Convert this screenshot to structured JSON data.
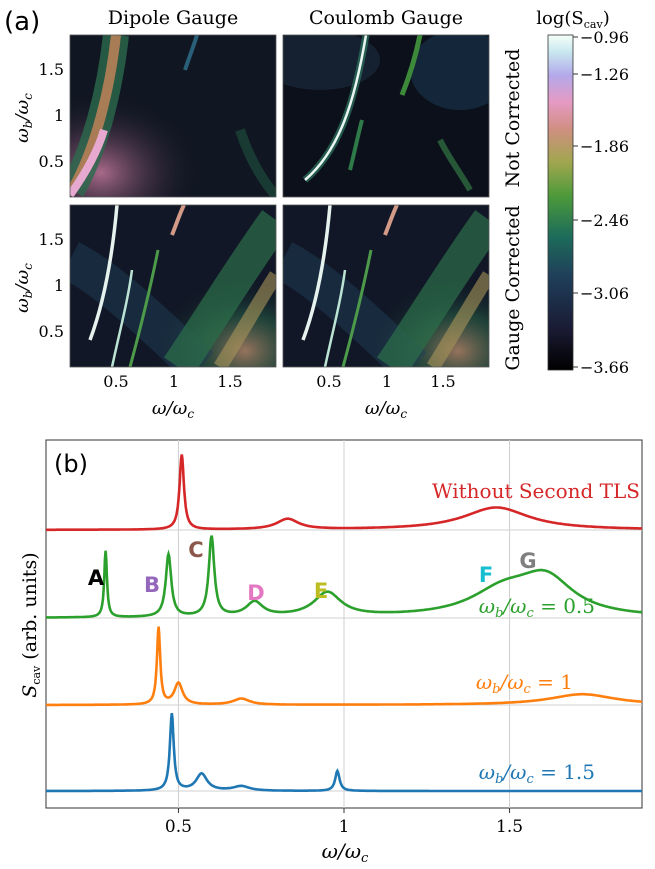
{
  "panel_a": {
    "label": "(a)",
    "column_titles": [
      "Dipole Gauge",
      "Coulomb Gauge"
    ],
    "row_titles": [
      "Not Corrected",
      "Gauge Corrected"
    ],
    "colorbar": {
      "title": "log(S",
      "title_sub": "cav",
      "title_close": ")",
      "ticks": [
        "−0.96",
        "−1.26",
        "−1.86",
        "−2.46",
        "−3.06",
        "−3.66"
      ]
    },
    "x_ticks": [
      "0.5",
      "1",
      "1.5"
    ],
    "y_ticks": [
      "0.5",
      "1",
      "1.5"
    ],
    "ylabel_main": "ω",
    "ylabel_sub": "b",
    "ylabel_slash": "/ω",
    "ylabel_sub2": "c",
    "xlabel_main": "ω/ω",
    "xlabel_sub": "c"
  },
  "panel_b": {
    "label": "(b)",
    "ylabel_main": "S",
    "ylabel_sub": "cav",
    "ylabel_tail": " (arb. units)",
    "xlabel_main": "ω/ω",
    "xlabel_sub": "c",
    "series_labels": [
      {
        "text": "Without Second TLS",
        "color": "#d62728"
      },
      {
        "text": "ω",
        "sub": "b",
        "mid": "/ω",
        "sub2": "c",
        "tail": " = 0.5",
        "color": "#2ca02c"
      },
      {
        "text": "ω",
        "sub": "b",
        "mid": "/ω",
        "sub2": "c",
        "tail": " = 1",
        "color": "#ff7f0e"
      },
      {
        "text": "ω",
        "sub": "b",
        "mid": "/ω",
        "sub2": "c",
        "tail": " = 1.5",
        "color": "#1f77b4"
      }
    ],
    "peak_letters": [
      {
        "text": "A",
        "color": "#000000"
      },
      {
        "text": "B",
        "color": "#9467bd"
      },
      {
        "text": "C",
        "color": "#8c564b"
      },
      {
        "text": "D",
        "color": "#e377c2"
      },
      {
        "text": "E",
        "color": "#bcbd22"
      },
      {
        "text": "F",
        "color": "#17becf"
      },
      {
        "text": "G",
        "color": "#7f7f7f"
      }
    ]
  },
  "chart_data": [
    {
      "type": "heatmap",
      "panels": [
        {
          "column": "Dipole Gauge",
          "row": "Not Corrected"
        },
        {
          "column": "Coulomb Gauge",
          "row": "Not Corrected"
        },
        {
          "column": "Dipole Gauge",
          "row": "Gauge Corrected"
        },
        {
          "column": "Coulomb Gauge",
          "row": "Gauge Corrected"
        }
      ],
      "xlim": [
        0.1,
        1.9
      ],
      "ylim": [
        0.1,
        1.9
      ],
      "color_range": [
        -3.66,
        -0.96
      ]
    },
    {
      "type": "line",
      "xlim": [
        0.1,
        1.9
      ],
      "x_ticks": [
        0.5,
        1,
        1.5
      ],
      "grid": true,
      "series": [
        {
          "name": "Without Second TLS",
          "color": "#d62728",
          "peaks": [
            {
              "x": 0.51,
              "h": 1.0,
              "w": 0.008
            },
            {
              "x": 0.83,
              "h": 0.14,
              "w": 0.04
            },
            {
              "x": 1.46,
              "h": 0.3,
              "w": 0.12
            }
          ]
        },
        {
          "name": "ω_b/ω_c = 0.5",
          "color": "#2ca02c",
          "peaks": [
            {
              "x": 0.28,
              "h": 0.83,
              "w": 0.005
            },
            {
              "x": 0.47,
              "h": 0.78,
              "w": 0.01
            },
            {
              "x": 0.6,
              "h": 1.0,
              "w": 0.01
            },
            {
              "x": 0.73,
              "h": 0.18,
              "w": 0.03
            },
            {
              "x": 0.95,
              "h": 0.3,
              "w": 0.05
            },
            {
              "x": 1.48,
              "h": 0.3,
              "w": 0.12
            },
            {
              "x": 1.61,
              "h": 0.45,
              "w": 0.1
            }
          ]
        },
        {
          "name": "ω_b/ω_c = 1",
          "color": "#ff7f0e",
          "peaks": [
            {
              "x": 0.44,
              "h": 1.0,
              "w": 0.006
            },
            {
              "x": 0.5,
              "h": 0.28,
              "w": 0.015
            },
            {
              "x": 0.69,
              "h": 0.08,
              "w": 0.03
            },
            {
              "x": 1.72,
              "h": 0.14,
              "w": 0.12
            }
          ]
        },
        {
          "name": "ω_b/ω_c = 1.5",
          "color": "#1f77b4",
          "peaks": [
            {
              "x": 0.48,
              "h": 1.0,
              "w": 0.007
            },
            {
              "x": 0.57,
              "h": 0.22,
              "w": 0.02
            },
            {
              "x": 0.69,
              "h": 0.06,
              "w": 0.03
            },
            {
              "x": 0.98,
              "h": 0.26,
              "w": 0.008
            }
          ]
        }
      ]
    }
  ]
}
